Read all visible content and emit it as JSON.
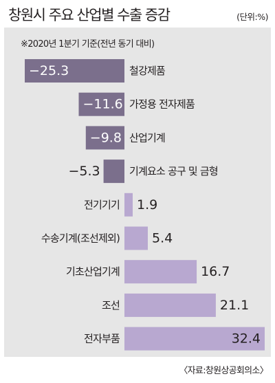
{
  "header": {
    "title": "창원시 주요 산업별 수출 증감",
    "unit": "(단위:%)",
    "basis": "※2020년 1분기 기준(전년 동기 대비)"
  },
  "footer": {
    "source": "〈자료:창원상공회의소〉"
  },
  "colors": {
    "negative_bar": "#7b6f8c",
    "positive_bar": "#b8a8d0",
    "panel": "#e6e6e6",
    "negative_label": "#ffffff"
  },
  "chart_data": {
    "type": "bar",
    "orientation": "horizontal",
    "categories": [
      "철강제품",
      "가정용 전자제품",
      "산업기계",
      "기계요소 공구 및 금형",
      "전기기기",
      "수송기계(조선제외)",
      "기초산업기계",
      "조선",
      "전자부품"
    ],
    "values": [
      -25.3,
      -11.6,
      -9.8,
      -5.3,
      1.9,
      5.4,
      16.7,
      21.1,
      32.4
    ],
    "value_labels": [
      "−25.3",
      "−11.6",
      "−9.8",
      "−5.3",
      "1.9",
      "5.4",
      "16.7",
      "21.1",
      "32.4"
    ],
    "xlim": [
      -25.3,
      32.4
    ]
  }
}
